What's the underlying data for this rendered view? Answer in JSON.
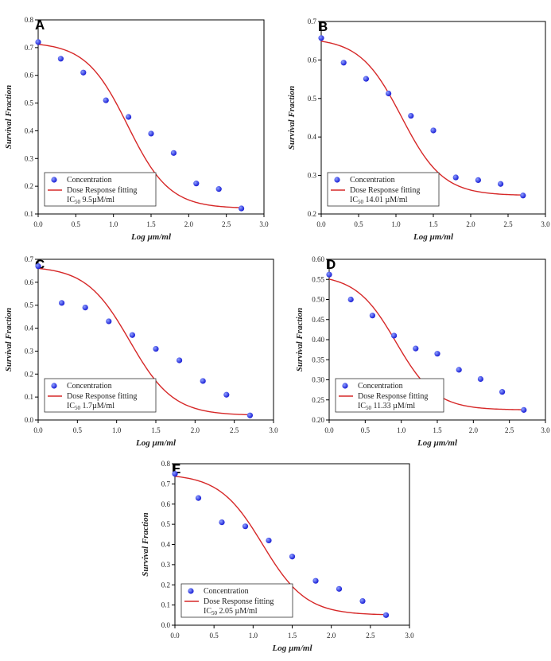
{
  "colors": {
    "fit": "#d62828",
    "point": "#1a1fd6",
    "point_highlight": "#8ea0ff"
  },
  "chart_data": [
    {
      "panel": "A",
      "type": "scatter",
      "xlabel": "Log  µm/ml",
      "ylabel": "Survival Fraction",
      "xlim": [
        0.0,
        3.0
      ],
      "ylim": [
        0.1,
        0.8
      ],
      "xticks": [
        "0.0",
        "0.5",
        "1.0",
        "1.5",
        "2.0",
        "2.5",
        "3.0"
      ],
      "yticks": [
        "0.1",
        "0.2",
        "0.3",
        "0.4",
        "0.5",
        "0.6",
        "0.7",
        "0.8"
      ],
      "series": [
        {
          "name": "Concentration",
          "x": [
            0.0,
            0.3,
            0.6,
            0.9,
            1.2,
            1.5,
            1.8,
            2.1,
            2.4,
            2.7
          ],
          "y": [
            0.72,
            0.66,
            0.61,
            0.51,
            0.45,
            0.39,
            0.32,
            0.21,
            0.19,
            0.12
          ]
        },
        {
          "name": "Dose Response fitting"
        }
      ],
      "ic50_label": "IC",
      "ic50_sub": "50",
      "ic50_value": " 9.5µM/ml",
      "legend_position": "bottom-left"
    },
    {
      "panel": "B",
      "type": "scatter",
      "xlabel": "Log  µm/ml",
      "ylabel": "Survival Fraction",
      "xlim": [
        0.0,
        3.0
      ],
      "ylim": [
        0.2,
        0.7
      ],
      "xticks": [
        "0.0",
        "0.5",
        "1.0",
        "1.5",
        "2.0",
        "2.5",
        "3.0"
      ],
      "yticks": [
        "0.2",
        "0.3",
        "0.4",
        "0.5",
        "0.6",
        "0.7"
      ],
      "series": [
        {
          "name": "Concentration",
          "x": [
            0.0,
            0.3,
            0.6,
            0.9,
            1.2,
            1.5,
            1.8,
            2.1,
            2.4,
            2.7
          ],
          "y": [
            0.657,
            0.593,
            0.551,
            0.513,
            0.455,
            0.417,
            0.295,
            0.288,
            0.278,
            0.248
          ]
        },
        {
          "name": "Dose Response fitting"
        }
      ],
      "ic50_label": "IC",
      "ic50_sub": "50",
      "ic50_value": " 14.01 µM/ml",
      "legend_position": "bottom-left"
    },
    {
      "panel": "C",
      "type": "scatter",
      "xlabel": "Log  µm/ml",
      "ylabel": "Survival Fraction",
      "xlim": [
        0.0,
        3.0
      ],
      "ylim": [
        0.0,
        0.7
      ],
      "xticks": [
        "0.0",
        "0.5",
        "1.0",
        "1.5",
        "2.0",
        "2.5",
        "3.0"
      ],
      "yticks": [
        "0.0",
        "0.1",
        "0.2",
        "0.3",
        "0.4",
        "0.5",
        "0.6",
        "0.7"
      ],
      "series": [
        {
          "name": "Concentration",
          "x": [
            0.0,
            0.3,
            0.6,
            0.9,
            1.2,
            1.5,
            1.8,
            2.1,
            2.4,
            2.7
          ],
          "y": [
            0.67,
            0.51,
            0.49,
            0.43,
            0.37,
            0.31,
            0.26,
            0.17,
            0.11,
            0.02
          ]
        },
        {
          "name": "Dose Response fitting"
        }
      ],
      "ic50_label": "IC",
      "ic50_sub": "50",
      "ic50_value": " 1.7µM/ml",
      "legend_position": "bottom-left"
    },
    {
      "panel": "D",
      "type": "scatter",
      "xlabel": "Log  µm/ml",
      "ylabel": "Survival Fraction",
      "xlim": [
        0.0,
        3.0
      ],
      "ylim": [
        0.2,
        0.6
      ],
      "xticks": [
        "0.0",
        "0.5",
        "1.0",
        "1.5",
        "2.0",
        "2.5",
        "3.0"
      ],
      "yticks": [
        "0.20",
        "0.25",
        "0.30",
        "0.35",
        "0.40",
        "0.45",
        "0.50",
        "0.55",
        "0.60"
      ],
      "series": [
        {
          "name": "Concentration",
          "x": [
            0.0,
            0.3,
            0.6,
            0.9,
            1.2,
            1.5,
            1.8,
            2.1,
            2.4,
            2.7
          ],
          "y": [
            0.562,
            0.5,
            0.46,
            0.41,
            0.378,
            0.365,
            0.325,
            0.302,
            0.27,
            0.225
          ]
        },
        {
          "name": "Dose Response fitting"
        }
      ],
      "ic50_label": "IC",
      "ic50_sub": "50",
      "ic50_value": " 11.33 µM/ml",
      "legend_position": "bottom-left"
    },
    {
      "panel": "E",
      "type": "scatter",
      "xlabel": "Log  µm/ml",
      "ylabel": "Survival Fraction",
      "xlim": [
        0.0,
        3.0
      ],
      "ylim": [
        0.0,
        0.8
      ],
      "xticks": [
        "0.0",
        "0.5",
        "1.0",
        "1.5",
        "2.0",
        "2.5",
        "3.0"
      ],
      "yticks": [
        "0.0",
        "0.1",
        "0.2",
        "0.3",
        "0.4",
        "0.5",
        "0.6",
        "0.7",
        "0.8"
      ],
      "series": [
        {
          "name": "Concentration",
          "x": [
            0.0,
            0.3,
            0.6,
            0.9,
            1.2,
            1.5,
            1.8,
            2.1,
            2.4,
            2.7
          ],
          "y": [
            0.75,
            0.63,
            0.51,
            0.49,
            0.42,
            0.34,
            0.22,
            0.18,
            0.12,
            0.05
          ]
        },
        {
          "name": "Dose Response fitting"
        }
      ],
      "ic50_label": "IC",
      "ic50_sub": "50",
      "ic50_value": " 2.05 µM/ml",
      "legend_position": "bottom-left"
    }
  ]
}
